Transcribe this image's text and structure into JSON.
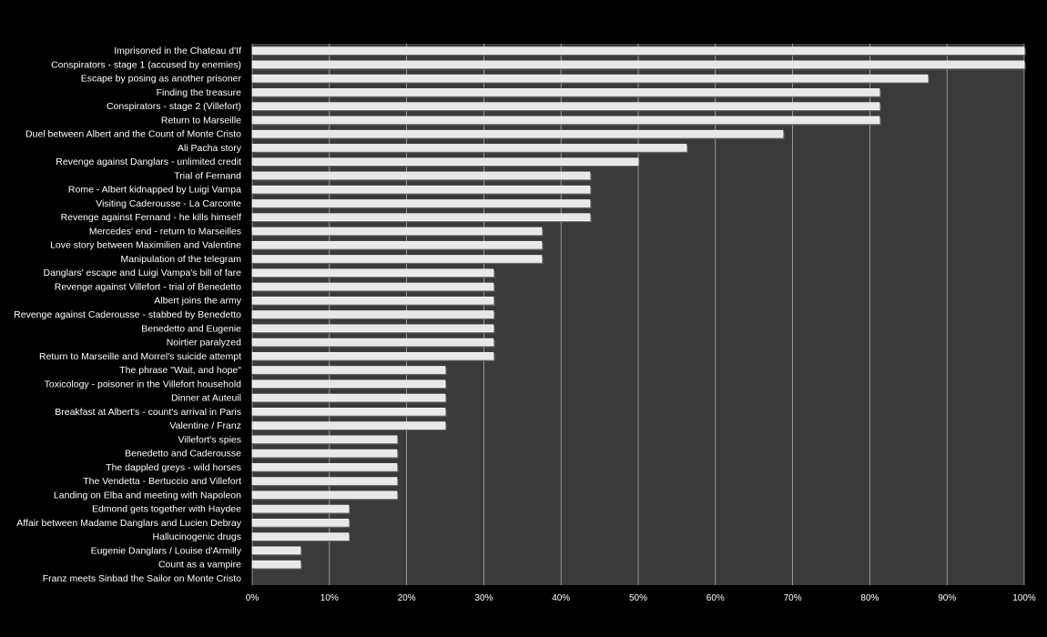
{
  "chart_data": {
    "type": "bar",
    "orientation": "horizontal",
    "title": "",
    "xlabel": "",
    "ylabel": "",
    "xlim": [
      0,
      1
    ],
    "x_ticks": [
      "0%",
      "10%",
      "20%",
      "30%",
      "40%",
      "50%",
      "60%",
      "70%",
      "80%",
      "90%",
      "100%"
    ],
    "grid": true,
    "legend": "none",
    "colors": {
      "background": "#000000",
      "plot_area": "#3a3a3a",
      "gridline": "#bdbdbd",
      "bar_fill": "#e8e8e8",
      "bar_shadow": "#6a6a6a",
      "text": "#ffffff"
    },
    "categories": [
      "Imprisoned in the Chateau d'If",
      "Conspirators - stage 1 (accused by enemies)",
      "Escape by posing as another prisoner",
      "Finding the treasure",
      "Conspirators - stage 2 (Villefort)",
      "Return to Marseille",
      "Duel between Albert and the Count of Monte Cristo",
      "Ali Pacha story",
      "Revenge against Danglars - unlimited credit",
      "Trial of Fernand",
      "Rome - Albert kidnapped by Luigi Vampa",
      "Visiting Caderousse - La Carconte",
      "Revenge against Fernand - he kills himself",
      "Mercedes' end - return to Marseilles",
      "Love story between Maximilien and Valentine",
      "Manipulation of the telegram",
      "Danglars' escape and Luigi Vampa's bill of fare",
      "Revenge against Villefort - trial of Benedetto",
      "Albert joins the army",
      "Revenge against Caderousse - stabbed by Benedetto",
      "Benedetto and Eugenie",
      "Noirtier paralyzed",
      "Return to Marseille and Morrel's suicide attempt",
      "The phrase \"Wait, and hope\"",
      "Toxicology - poisoner in the Villefort household",
      "Dinner at Auteuil",
      "Breakfast at Albert's - count's arrival in Paris",
      "Valentine / Franz",
      "Villefort's spies",
      "Benedetto and Caderousse",
      "The dappled greys - wild horses",
      "The Vendetta - Bertuccio and Villefort",
      "Landing on Elba and meeting with Napoleon",
      "Edmond gets together with Haydee",
      "Affair between Madame Danglars and Lucien Debray",
      "Hallucinogenic drugs",
      "Eugenie Danglars / Louise d'Armilly",
      "Count as a vampire",
      "Franz meets Sinbad the Sailor on Monte Cristo"
    ],
    "values": [
      1.0,
      1.0,
      0.875,
      0.8125,
      0.8125,
      0.8125,
      0.6875,
      0.5625,
      0.5,
      0.4375,
      0.4375,
      0.4375,
      0.4375,
      0.375,
      0.375,
      0.375,
      0.3125,
      0.3125,
      0.3125,
      0.3125,
      0.3125,
      0.3125,
      0.3125,
      0.25,
      0.25,
      0.25,
      0.25,
      0.25,
      0.1875,
      0.1875,
      0.1875,
      0.1875,
      0.1875,
      0.125,
      0.125,
      0.125,
      0.0625,
      0.0625,
      0.0
    ]
  }
}
